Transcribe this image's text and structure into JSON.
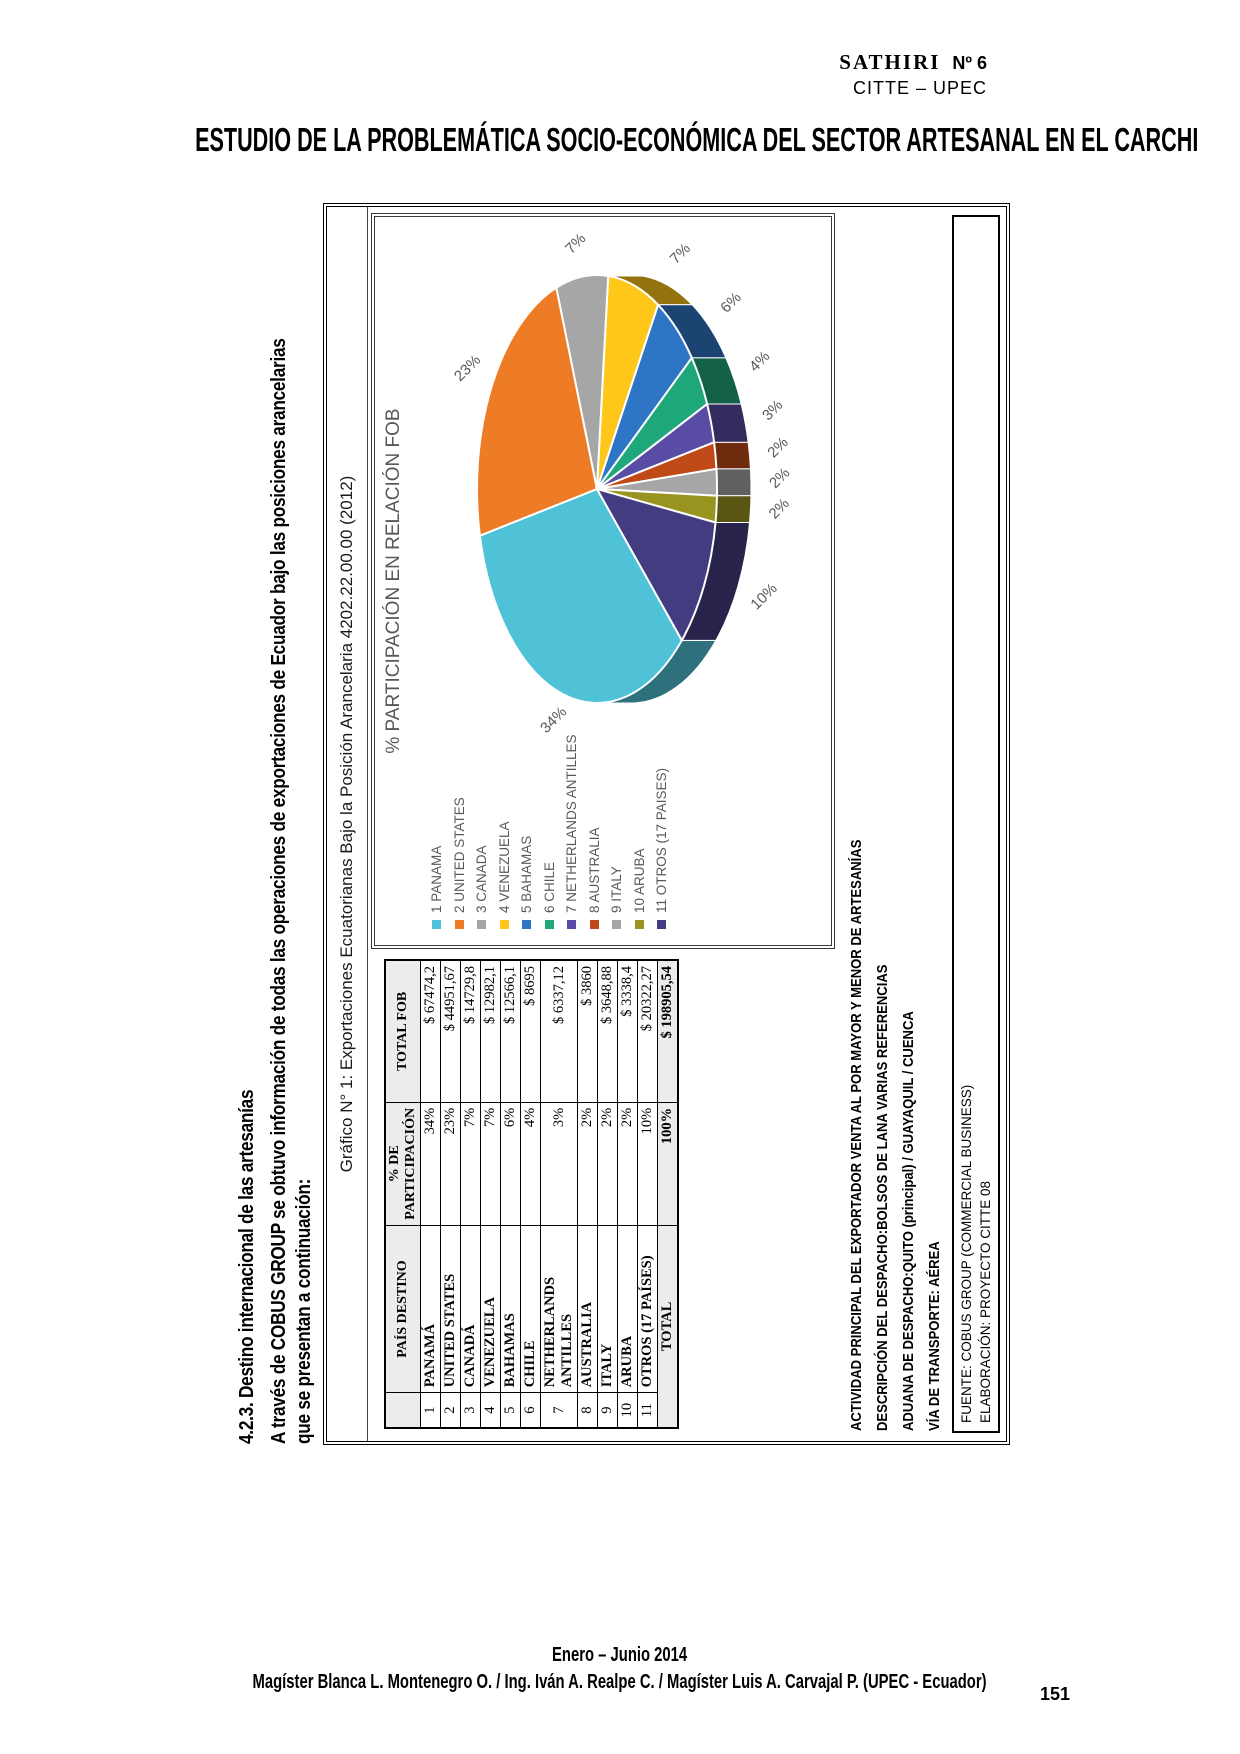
{
  "page": {
    "journal": "SATHIRI",
    "issue": "Nº 6",
    "institution": "CITTE – UPEC",
    "title": "ESTUDIO DE LA PROBLEMÁTICA SOCIO-ECONÓMICA DEL SECTOR ARTESANAL EN EL CARCHI",
    "section_heading": "4.2.3.  Destino internacional de las artesanías",
    "intro_line1": "A través de COBUS GROUP se obtuvo información de todas las operaciones de exportaciones de Ecuador bajo las posiciones arancelarias",
    "intro_line2": "que se presentan a continuación:",
    "footer_period": "Enero – Junio 2014",
    "footer_authors": "Magíster Blanca L. Montenegro O. / Ing. Iván A. Realpe C. / Magíster Luis A. Carvajal P. (UPEC - Ecuador)",
    "page_number": "151"
  },
  "figure": {
    "box_title": "Gráfico N° 1: Exportaciones Ecuatorianas Bajo la Posición Arancelaria 4202.22.00.00  (2012)",
    "notes": [
      "ACTIVIDAD PRINCIPAL DEL EXPORTADOR VENTA AL POR MAYOR Y MENOR DE ARTESANÍAS",
      "DESCRIPCIÓN DEL DESPACHO:BOLSOS DE LANA VARIAS REFERENCIAS",
      "ADUANA DE DESPACHO:QUITO (principal) / GUAYAQUIL / CUENCA",
      "VÍA DE TRANSPORTE: AÉREA"
    ],
    "source_lines": [
      "FUENTE: COBUS GROUP (COMMERCIAL BUSINESS)",
      "ELABORACIÓN: PROYECTO CITTE 08"
    ]
  },
  "table": {
    "headers": [
      "",
      "PAÍS DESTINO",
      "% DE PARTICIPACIÓN",
      "TOTAL FOB"
    ],
    "rows": [
      [
        "1",
        "PANAMÁ",
        "34%",
        "$ 67474,2"
      ],
      [
        "2",
        "UNITED STATES",
        "23%",
        "$ 44951,67"
      ],
      [
        "3",
        "CANADÁ",
        "7%",
        "$ 14729,8"
      ],
      [
        "4",
        "VENEZUELA",
        "7%",
        "$ 12982,1"
      ],
      [
        "5",
        "BAHAMAS",
        "6%",
        "$ 12566,1"
      ],
      [
        "6",
        "CHILE",
        "4%",
        "$ 8695"
      ],
      [
        "7",
        "NETHERLANDS ANTILLES",
        "3%",
        "$ 6337,12"
      ],
      [
        "8",
        "AUSTRALIA",
        "2%",
        "$ 3860"
      ],
      [
        "9",
        "ITALY",
        "2%",
        "$ 3648,88"
      ],
      [
        "10",
        "ARUBA",
        "2%",
        "$ 3338,4"
      ],
      [
        "11",
        "OTROS (17 PAÍSES)",
        "10%",
        "$ 20322,27"
      ]
    ],
    "total": {
      "label": "TOTAL",
      "pct": "100%",
      "fob": "$ 198905,54"
    }
  },
  "chart_data": {
    "type": "pie",
    "title": "% PARTICIPACIÓN EN RELACIÓN FOB",
    "effect": "3d",
    "legend_position": "left",
    "start_angle_deg": 225,
    "categories": [
      "1 PANAMA",
      "2 UNITED STATES",
      "3 CANADA",
      "4 VENEZUELA",
      "5 BAHAMAS",
      "6 CHILE",
      "7 NETHERLANDS ANTILLES",
      "8 AUSTRALIA",
      "9 ITALY",
      "10 ARUBA",
      "11 OTROS (17 PAISES)"
    ],
    "values": [
      34,
      23,
      7,
      7,
      6,
      4,
      3,
      2,
      2,
      2,
      10
    ],
    "percent_labels": [
      "34%",
      "23%",
      "7%",
      "7%",
      "6%",
      "4%",
      "3%",
      "2%",
      "2%",
      "2%",
      "10%"
    ],
    "colors": [
      "#4FC2D8",
      "#EE7B26",
      "#A6A6A6",
      "#FFC719",
      "#2E76C5",
      "#1FA77C",
      "#584CA4",
      "#BF4A17",
      "#A6A6A6",
      "#99931F",
      "#443C80"
    ],
    "label_color": "#595959"
  }
}
